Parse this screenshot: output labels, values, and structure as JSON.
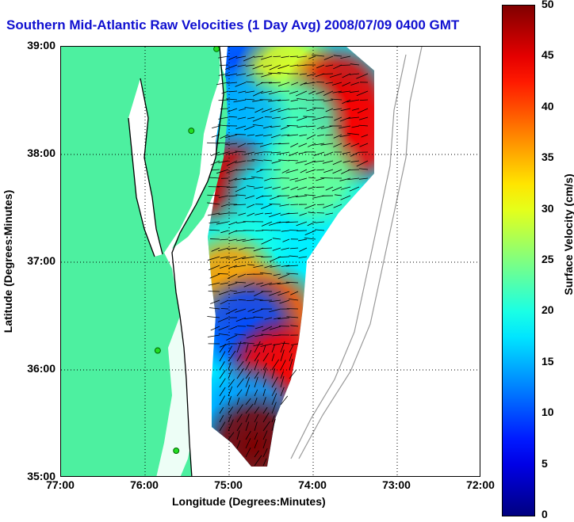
{
  "title": "Southern Mid-Atlantic Raw Velocities (1 Day Avg) 2008/07/09 0400 GMT",
  "chart_data": {
    "type": "heatmap",
    "x_label": "Longitude (Degrees:Minutes)",
    "y_label": "Latitude (Degrees:Minutes)",
    "x_ticks": [
      "77:00",
      "76:00",
      "75:00",
      "74:00",
      "73:00",
      "72:00"
    ],
    "y_ticks": [
      "39:00",
      "38:00",
      "37:00",
      "36:00",
      "35:00"
    ],
    "x_range": [
      -77,
      -72
    ],
    "y_range": [
      35,
      39
    ],
    "grid": true,
    "colorbar": {
      "label": "Surface Velocity (cm/s)",
      "ticks": [
        "50",
        "45",
        "40",
        "35",
        "30",
        "25",
        "20",
        "15",
        "10",
        "5",
        "0"
      ],
      "range": [
        0,
        50
      ],
      "colormap": "jet"
    },
    "colors": {
      "land": "#4df0a0",
      "title": "#1010d0",
      "coast": "#000000",
      "bathymetry": "#999999",
      "station": "#22dd22"
    },
    "velocity_field": [
      {
        "lon": -74.9,
        "lat": 38.8,
        "speed": 10
      },
      {
        "lon": -74.3,
        "lat": 38.7,
        "speed": 30
      },
      {
        "lon": -73.7,
        "lat": 38.55,
        "speed": 45
      },
      {
        "lon": -73.5,
        "lat": 38.2,
        "speed": 44
      },
      {
        "lon": -74.2,
        "lat": 38.3,
        "speed": 22
      },
      {
        "lon": -74.9,
        "lat": 38.35,
        "speed": 15
      },
      {
        "lon": -75.0,
        "lat": 37.7,
        "speed": 46
      },
      {
        "lon": -74.5,
        "lat": 37.6,
        "speed": 18
      },
      {
        "lon": -74.0,
        "lat": 37.8,
        "speed": 24
      },
      {
        "lon": -74.9,
        "lat": 37.1,
        "speed": 20
      },
      {
        "lon": -75.0,
        "lat": 36.8,
        "speed": 36
      },
      {
        "lon": -74.5,
        "lat": 36.5,
        "speed": 40
      },
      {
        "lon": -74.8,
        "lat": 36.4,
        "speed": 10
      },
      {
        "lon": -74.4,
        "lat": 36.0,
        "speed": 44
      },
      {
        "lon": -74.8,
        "lat": 35.6,
        "speed": 14
      },
      {
        "lon": -74.7,
        "lat": 35.3,
        "speed": 50
      }
    ],
    "stations": [
      {
        "lon": -75.15,
        "lat": 38.98
      },
      {
        "lon": -75.45,
        "lat": 38.22
      },
      {
        "lon": -75.85,
        "lat": 36.18
      },
      {
        "lon": -75.63,
        "lat": 35.25
      }
    ]
  }
}
